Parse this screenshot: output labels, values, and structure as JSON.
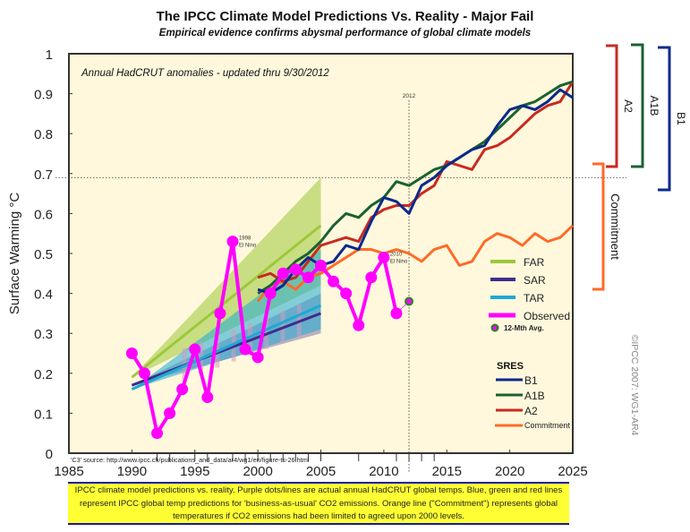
{
  "header": {
    "title": "The IPCC Climate Model Predictions Vs. Reality - Major Fail",
    "subtitle": "Empirical evidence confirms abysmal performance of global climate models"
  },
  "caption": "IPCC climate model predictions vs. reality. Purple dots/lines are actual annual HadCRUT global temps. Blue, green and red lines represent IPCC global temp predictions for 'business-as-usual' CO2 emissions. Orange line (\"Commitment\") represents global temperatures if CO2 emissions had been limited to agreed upon 2000 levels.",
  "chart_data": {
    "type": "line",
    "title": "The IPCC Climate Model Predictions Vs. Reality - Major Fail",
    "subtitle": "Empirical evidence confirms abysmal performance of global climate models",
    "annotation_top": "Annual HadCRUT anomalies - updated thru 9/30/2012",
    "xlabel": "",
    "ylabel": "Surface Warming °C",
    "xlim": [
      1985,
      2025
    ],
    "ylim": [
      0,
      1
    ],
    "x_ticks": [
      1985,
      1990,
      1995,
      2000,
      2005,
      2010,
      2015,
      2020,
      2025
    ],
    "y_ticks": [
      0,
      0.1,
      0.2,
      0.3,
      0.4,
      0.5,
      0.6,
      0.7,
      0.8,
      0.9,
      1
    ],
    "y_tick_labels": [
      "0",
      "0.1",
      "0.2",
      "0.3",
      "0.4",
      "0.5",
      "0.6",
      "0.7",
      "0.8",
      "0.9",
      "1"
    ],
    "reference_lines": {
      "vertical": {
        "x": 2012,
        "label": "2012"
      },
      "horizontal": {
        "y": 0.69
      }
    },
    "source_note": "'C3' source: http://www.ipcc.ch/publications_and_data/ar4/wg1/en/figure-ts-26.html",
    "copyright": "©IPCC 2007: WG1-AR4",
    "point_annotations": [
      {
        "x": 1998,
        "y": 0.53,
        "text": "1998 El Nino"
      },
      {
        "x": 2010,
        "y": 0.49,
        "text": "2010 El Nino"
      }
    ],
    "projection_bands": [
      {
        "name": "FAR",
        "color": "#9dc83a",
        "x": [
          1990,
          2005
        ],
        "center": [
          0.19,
          0.57
        ],
        "low": [
          0.19,
          0.42
        ],
        "high": [
          0.19,
          0.69
        ]
      },
      {
        "name": "SAR",
        "color": "#3e2d8c",
        "x": [
          1990,
          2005
        ],
        "center": [
          0.17,
          0.35
        ],
        "low": [
          0.17,
          0.3
        ],
        "high": [
          0.17,
          0.4
        ]
      },
      {
        "name": "TAR",
        "color": "#1ea9d4",
        "x": [
          1990,
          2005
        ],
        "center": [
          0.16,
          0.37
        ],
        "low": [
          0.16,
          0.31
        ],
        "high": [
          0.16,
          0.51
        ]
      }
    ],
    "series": [
      {
        "name": "Observed",
        "color": "#ff00ff",
        "x": [
          1990,
          1991,
          1992,
          1993,
          1994,
          1995,
          1996,
          1997,
          1998,
          1999,
          2000,
          2001,
          2002,
          2003,
          2004,
          2005,
          2006,
          2007,
          2008,
          2009,
          2010,
          2011
        ],
        "values": [
          0.25,
          0.2,
          0.05,
          0.1,
          0.16,
          0.26,
          0.14,
          0.35,
          0.53,
          0.26,
          0.24,
          0.4,
          0.45,
          0.46,
          0.44,
          0.47,
          0.43,
          0.4,
          0.32,
          0.44,
          0.49,
          0.35
        ]
      },
      {
        "name": "12-Mth Avg.",
        "color": "#ff00ff",
        "x": [
          2012
        ],
        "values": [
          0.38
        ]
      },
      {
        "name": "B1",
        "color": "#0a2a8c",
        "x": [
          2000,
          2001,
          2002,
          2003,
          2004,
          2005,
          2006,
          2007,
          2008,
          2009,
          2010,
          2011,
          2012,
          2013,
          2014,
          2015,
          2016,
          2017,
          2018,
          2019,
          2020,
          2021,
          2022,
          2023,
          2024,
          2025
        ],
        "values": [
          0.41,
          0.4,
          0.42,
          0.46,
          0.49,
          0.47,
          0.48,
          0.52,
          0.51,
          0.58,
          0.64,
          0.63,
          0.6,
          0.67,
          0.69,
          0.72,
          0.74,
          0.76,
          0.77,
          0.82,
          0.86,
          0.87,
          0.86,
          0.88,
          0.91,
          0.89
        ]
      },
      {
        "name": "A1B",
        "color": "#1a6130",
        "x": [
          2000,
          2001,
          2002,
          2003,
          2004,
          2005,
          2006,
          2007,
          2008,
          2009,
          2010,
          2011,
          2012,
          2013,
          2014,
          2015,
          2016,
          2017,
          2018,
          2019,
          2020,
          2021,
          2022,
          2023,
          2024,
          2025
        ],
        "values": [
          0.4,
          0.42,
          0.45,
          0.48,
          0.5,
          0.53,
          0.57,
          0.6,
          0.59,
          0.62,
          0.64,
          0.68,
          0.67,
          0.69,
          0.71,
          0.72,
          0.74,
          0.76,
          0.78,
          0.81,
          0.84,
          0.87,
          0.88,
          0.9,
          0.92,
          0.93
        ]
      },
      {
        "name": "A2",
        "color": "#c82a20",
        "x": [
          2000,
          2001,
          2002,
          2003,
          2004,
          2005,
          2006,
          2007,
          2008,
          2009,
          2010,
          2011,
          2012,
          2013,
          2014,
          2015,
          2016,
          2017,
          2018,
          2019,
          2020,
          2021,
          2022,
          2023,
          2024,
          2025
        ],
        "values": [
          0.44,
          0.45,
          0.43,
          0.44,
          0.48,
          0.52,
          0.53,
          0.54,
          0.53,
          0.59,
          0.61,
          0.62,
          0.62,
          0.65,
          0.67,
          0.73,
          0.72,
          0.71,
          0.76,
          0.77,
          0.79,
          0.82,
          0.85,
          0.87,
          0.88,
          0.93
        ]
      },
      {
        "name": "Commitment",
        "color": "#ff6a28",
        "x": [
          2000,
          2001,
          2002,
          2003,
          2004,
          2005,
          2006,
          2007,
          2008,
          2009,
          2010,
          2011,
          2012,
          2013,
          2014,
          2015,
          2016,
          2017,
          2018,
          2019,
          2020,
          2021,
          2022,
          2023,
          2024,
          2025
        ],
        "values": [
          0.38,
          0.42,
          0.43,
          0.41,
          0.44,
          0.45,
          0.47,
          0.49,
          0.51,
          0.51,
          0.5,
          0.51,
          0.5,
          0.48,
          0.51,
          0.52,
          0.47,
          0.48,
          0.53,
          0.55,
          0.54,
          0.52,
          0.55,
          0.53,
          0.54,
          0.57
        ]
      }
    ],
    "legend": {
      "placement": "right",
      "items": [
        {
          "label": "FAR",
          "color": "#9dc83a"
        },
        {
          "label": "SAR",
          "color": "#3e2d8c"
        },
        {
          "label": "TAR",
          "color": "#1ea9d4"
        },
        {
          "label": "Observed",
          "color": "#ff00ff"
        },
        {
          "label": "12-Mth Avg.",
          "color": "#ff00ff",
          "marker_edge": "#1a8c1a"
        }
      ],
      "sres_title": "SRES",
      "sres_items": [
        {
          "label": "B1",
          "color": "#0a2a8c"
        },
        {
          "label": "A1B",
          "color": "#1a6130"
        },
        {
          "label": "A2",
          "color": "#c82a20"
        },
        {
          "label": "Commitment",
          "color": "#ff6a28"
        }
      ]
    },
    "range_brackets": [
      {
        "label": "A2",
        "color": "#c82a20",
        "range": [
          0.72,
          1.0
        ]
      },
      {
        "label": "A1B",
        "color": "#1a6130",
        "range": [
          0.72,
          1.01
        ]
      },
      {
        "label": "B1",
        "color": "#0a2a8c",
        "range": [
          0.66,
          1.0
        ]
      },
      {
        "label": "Commitment",
        "color": "#ff6a28",
        "range": [
          0.41,
          0.71
        ]
      }
    ],
    "plot_background": "#fff8dc"
  }
}
